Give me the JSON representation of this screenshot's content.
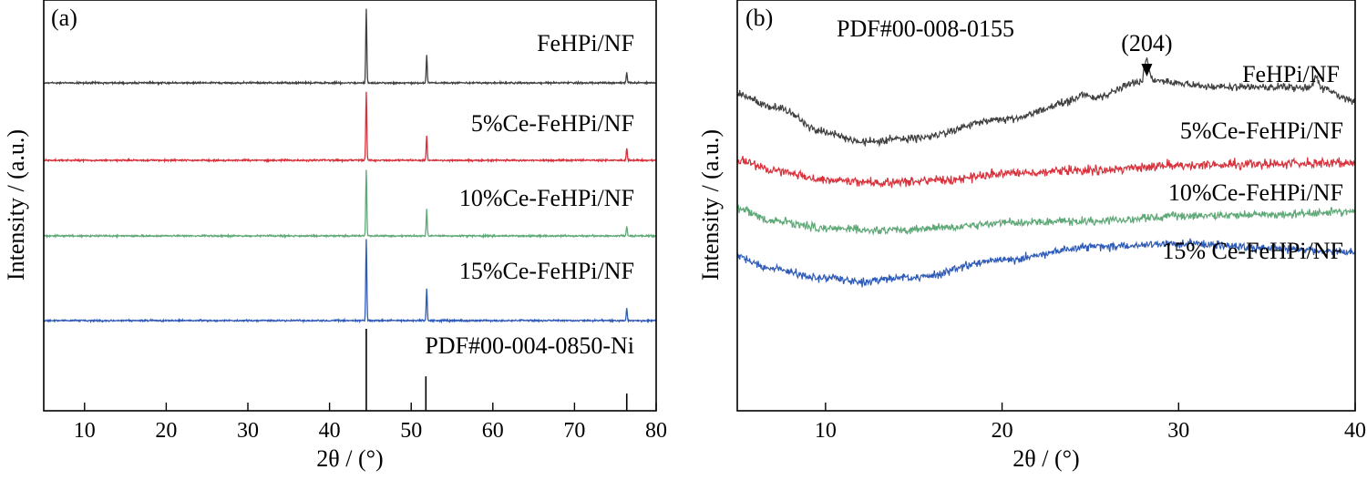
{
  "chart_data": [
    {
      "type": "line",
      "panel_label": "(a)",
      "xlabel": "2θ / (°)",
      "ylabel": "Intensity / (a.u.)",
      "xlim": [
        5,
        80
      ],
      "x_ticks": [
        10,
        20,
        30,
        40,
        50,
        60,
        70,
        80
      ],
      "grid": false,
      "series": [
        {
          "name": "FeHPi/NF",
          "color": "#404040",
          "peaks": [
            {
              "x": 44.5,
              "height": 100
            },
            {
              "x": 51.9,
              "height": 37
            },
            {
              "x": 76.4,
              "height": 14
            }
          ]
        },
        {
          "name": "5%Ce-FeHPi/NF",
          "color": "#d8323c",
          "peaks": [
            {
              "x": 44.5,
              "height": 100
            },
            {
              "x": 51.9,
              "height": 36
            },
            {
              "x": 76.4,
              "height": 18
            }
          ]
        },
        {
          "name": "10%Ce-FeHPi/NF",
          "color": "#5fa877",
          "peaks": [
            {
              "x": 44.5,
              "height": 100
            },
            {
              "x": 51.9,
              "height": 40
            },
            {
              "x": 76.4,
              "height": 15
            }
          ]
        },
        {
          "name": "15%Ce-FeHPi/NF",
          "color": "#2f5bb7",
          "peaks": [
            {
              "x": 44.5,
              "height": 100
            },
            {
              "x": 51.9,
              "height": 39
            },
            {
              "x": 76.4,
              "height": 15
            }
          ]
        }
      ],
      "reference": {
        "name": "PDF#00-004-0850-Ni",
        "color": "#000000",
        "lines": [
          {
            "x": 44.5,
            "intensity": 100
          },
          {
            "x": 51.8,
            "intensity": 42
          },
          {
            "x": 76.4,
            "intensity": 21
          }
        ]
      }
    },
    {
      "type": "line",
      "panel_label": "(b)",
      "xlabel": "2θ / (°)",
      "ylabel": "Intensity / (a.u.)",
      "xlim": [
        5,
        40
      ],
      "x_ticks": [
        10,
        20,
        30,
        40
      ],
      "grid": false,
      "annotations": [
        {
          "text": "PDF#00-008-0155"
        },
        {
          "text": "(204)",
          "x": 28.2
        }
      ],
      "series": [
        {
          "name": "FeHPi/NF",
          "color": "#404040",
          "profile": [
            {
              "x": 5,
              "y": 3.1
            },
            {
              "x": 7,
              "y": 2.9
            },
            {
              "x": 10,
              "y": 2.5
            },
            {
              "x": 12,
              "y": 2.35
            },
            {
              "x": 15,
              "y": 2.4
            },
            {
              "x": 20,
              "y": 2.7
            },
            {
              "x": 24.6,
              "y": 3.0
            },
            {
              "x": 28.2,
              "y": 3.3
            },
            {
              "x": 33,
              "y": 3.2
            },
            {
              "x": 37.8,
              "y": 3.2
            },
            {
              "x": 40,
              "y": 3.0
            }
          ]
        },
        {
          "name": "5%Ce-FeHPi/NF",
          "color": "#d8323c",
          "profile": [
            {
              "x": 5,
              "y": 2.05
            },
            {
              "x": 7,
              "y": 1.9
            },
            {
              "x": 10,
              "y": 1.75
            },
            {
              "x": 13,
              "y": 1.7
            },
            {
              "x": 17,
              "y": 1.75
            },
            {
              "x": 20,
              "y": 1.85
            },
            {
              "x": 25,
              "y": 1.9
            },
            {
              "x": 30,
              "y": 1.98
            },
            {
              "x": 35,
              "y": 2.0
            },
            {
              "x": 40,
              "y": 2.02
            }
          ]
        },
        {
          "name": "10%Ce-FeHPi/NF",
          "color": "#5fa877",
          "profile": [
            {
              "x": 5,
              "y": 1.3
            },
            {
              "x": 7,
              "y": 1.1
            },
            {
              "x": 10,
              "y": 1.0
            },
            {
              "x": 13,
              "y": 0.95
            },
            {
              "x": 17,
              "y": 1.0
            },
            {
              "x": 20,
              "y": 1.08
            },
            {
              "x": 25,
              "y": 1.1
            },
            {
              "x": 30,
              "y": 1.18
            },
            {
              "x": 35,
              "y": 1.2
            },
            {
              "x": 40,
              "y": 1.25
            }
          ]
        },
        {
          "name": "15% Ce-FeHPi/NF",
          "color": "#2f5bb7",
          "profile": [
            {
              "x": 5,
              "y": 0.55
            },
            {
              "x": 7,
              "y": 0.35
            },
            {
              "x": 10,
              "y": 0.2
            },
            {
              "x": 12,
              "y": 0.15
            },
            {
              "x": 15,
              "y": 0.22
            },
            {
              "x": 20,
              "y": 0.5
            },
            {
              "x": 25,
              "y": 0.7
            },
            {
              "x": 30,
              "y": 0.75
            },
            {
              "x": 35,
              "y": 0.68
            },
            {
              "x": 40,
              "y": 0.62
            }
          ]
        }
      ]
    }
  ]
}
